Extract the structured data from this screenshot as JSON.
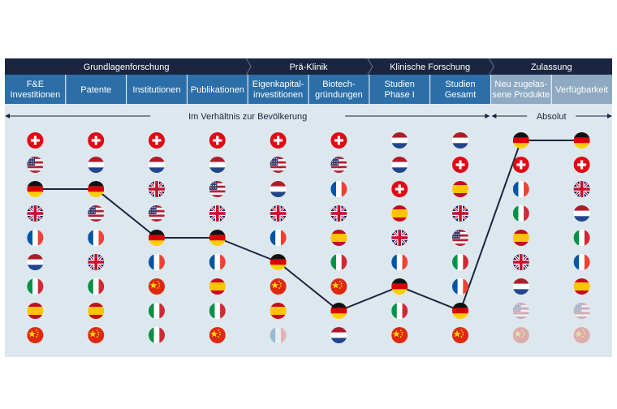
{
  "chart_data": {
    "type": "table",
    "phases": [
      {
        "label": "Grundlagenforschung",
        "span": [
          0,
          3
        ]
      },
      {
        "label": "Prä-Klinik",
        "span": [
          4,
          5
        ]
      },
      {
        "label": "Klinische Forschung",
        "span": [
          6,
          7
        ]
      },
      {
        "label": "Zulassung",
        "span": [
          8,
          9
        ]
      }
    ],
    "columns": [
      {
        "label": [
          "F&E",
          "Investitionen"
        ],
        "muted": false
      },
      {
        "label": [
          "Patente"
        ],
        "muted": false
      },
      {
        "label": [
          "Institutionen"
        ],
        "muted": false
      },
      {
        "label": [
          "Publikationen"
        ],
        "muted": false
      },
      {
        "label": [
          "Eigenkapital-",
          "investitionen"
        ],
        "muted": false
      },
      {
        "label": [
          "Biotech-",
          "gründungen"
        ],
        "muted": false
      },
      {
        "label": [
          "Studien",
          "Phase I"
        ],
        "muted": false
      },
      {
        "label": [
          "Studien",
          "Gesamt"
        ],
        "muted": false
      },
      {
        "label": [
          "Neu zugelas-",
          "sene Produkte"
        ],
        "muted": true
      },
      {
        "label": [
          "Verfügbarkeit"
        ],
        "muted": true
      }
    ],
    "annotations": {
      "relative": "Im Verhältnis zur Bevölkerung",
      "absolute": "Absolut"
    },
    "highlight_country": "DE",
    "rankings": [
      [
        "CH",
        "US",
        "DE",
        "GB",
        "FR",
        "NL",
        "IT",
        "ES",
        "CN"
      ],
      [
        "CH",
        "NL",
        "DE",
        "US",
        "FR",
        "GB",
        "IT",
        "ES",
        "CN"
      ],
      [
        "CH",
        "NL",
        "GB",
        "US",
        "DE",
        "FR",
        "CN",
        "IT",
        "IT"
      ],
      [
        "CH",
        "NL",
        "US",
        "GB",
        "DE",
        "FR",
        "ES",
        "IT",
        "CN"
      ],
      [
        "CH",
        "US",
        "NL",
        "GB",
        "FR",
        "DE",
        "CN",
        "ES",
        "FR"
      ],
      [
        "CH",
        "US",
        "FR",
        "GB",
        "ES",
        "IT",
        "CN",
        "DE",
        "NL"
      ],
      [
        "NL",
        "NL",
        "CH",
        "ES",
        "GB",
        "FR",
        "DE",
        "IT",
        "CN"
      ],
      [
        "NL",
        "CH",
        "ES",
        "GB",
        "US",
        "IT",
        "FR",
        "DE",
        "CN"
      ],
      [
        "DE",
        "CH",
        "FR",
        "IT",
        "ES",
        "GB",
        "NL",
        "US",
        "CN"
      ],
      [
        "DE",
        "CH",
        "GB",
        "NL",
        "IT",
        "FR",
        "ES",
        "US",
        "CN"
      ]
    ],
    "faded_cells": [
      [
        4,
        8
      ],
      [
        8,
        7
      ],
      [
        8,
        8
      ],
      [
        9,
        7
      ],
      [
        9,
        8
      ]
    ],
    "german_rank": [
      3,
      3,
      5,
      5,
      6,
      8,
      7,
      8,
      1,
      1
    ],
    "colors": {
      "phase_bg": "#1a2540",
      "column_bg": "#2b6ea8",
      "column_muted_bg": "#8ea9c1",
      "chart_bg": "#dde7ee",
      "line": "#1a2540",
      "annotation": "#1a2540"
    }
  }
}
